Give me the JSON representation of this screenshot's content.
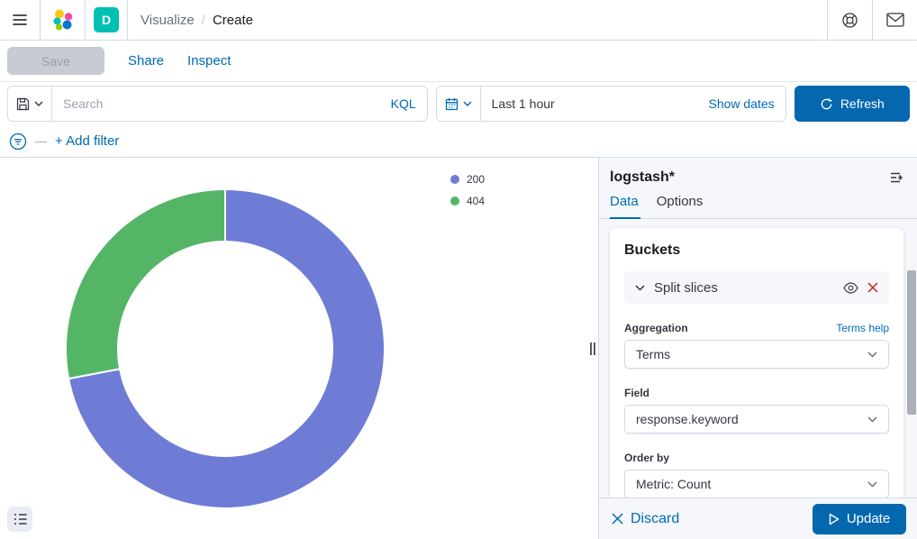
{
  "header": {
    "breadcrumbs": [
      "Visualize",
      "Create"
    ],
    "space_badge": "D"
  },
  "toolbar": {
    "save": "Save",
    "share": "Share",
    "inspect": "Inspect"
  },
  "query_bar": {
    "search_placeholder": "Search",
    "language": "KQL",
    "time_range": "Last 1 hour",
    "show_dates_label": "Show dates",
    "refresh_label": "Refresh"
  },
  "filter_bar": {
    "add_filter_label": "+ Add filter"
  },
  "chart_data": {
    "type": "pie",
    "donut": true,
    "title": "",
    "legend_position": "top-right",
    "note": "values are estimated percentages of the ring",
    "segments": [
      {
        "label": "200",
        "value": 72,
        "color": "#6e7cd6"
      },
      {
        "label": "404",
        "value": 28,
        "color": "#55b567"
      }
    ]
  },
  "panel": {
    "index_pattern": "logstash*",
    "tabs": [
      {
        "label": "Data"
      },
      {
        "label": "Options"
      }
    ],
    "buckets": {
      "heading": "Buckets",
      "accordion_label": "Split slices",
      "fields": [
        {
          "label": "Aggregation",
          "value": "Terms",
          "help": "Terms help"
        },
        {
          "label": "Field",
          "value": "response.keyword"
        },
        {
          "label": "Order by",
          "value": "Metric: Count"
        }
      ]
    },
    "footer": {
      "discard": "Discard",
      "update": "Update"
    }
  },
  "colors": {
    "accent": "#006BB4",
    "primary_button": "#0568ae",
    "danger": "#BD271E",
    "space_badge": "#00BFB3"
  }
}
